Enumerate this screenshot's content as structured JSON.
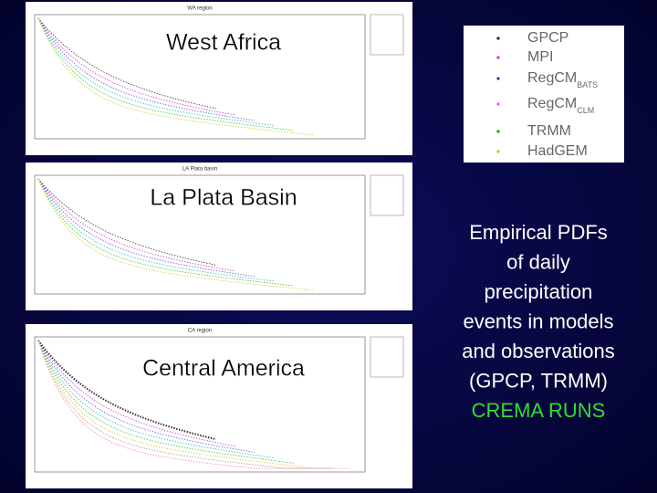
{
  "panels": [
    {
      "label": "West Africa",
      "title": "WA region"
    },
    {
      "label": "La Plata Basin",
      "title": "LA Plata basin"
    },
    {
      "label": "Central America",
      "title": "CA region"
    }
  ],
  "legend": {
    "items": [
      {
        "name": "GPCP"
      },
      {
        "name": "MPI"
      },
      {
        "name": "RegCM",
        "sub": "BATS"
      },
      {
        "name": "RegCM",
        "sub": "CLM"
      },
      {
        "name": "TRMM"
      },
      {
        "name": "HadGEM"
      }
    ]
  },
  "caption": {
    "lines": [
      "Empirical PDFs",
      "of daily",
      "precipitation",
      "events in models",
      "and observations",
      "(GPCP, TRMM)"
    ],
    "highlight": "CREMA RUNS"
  }
}
